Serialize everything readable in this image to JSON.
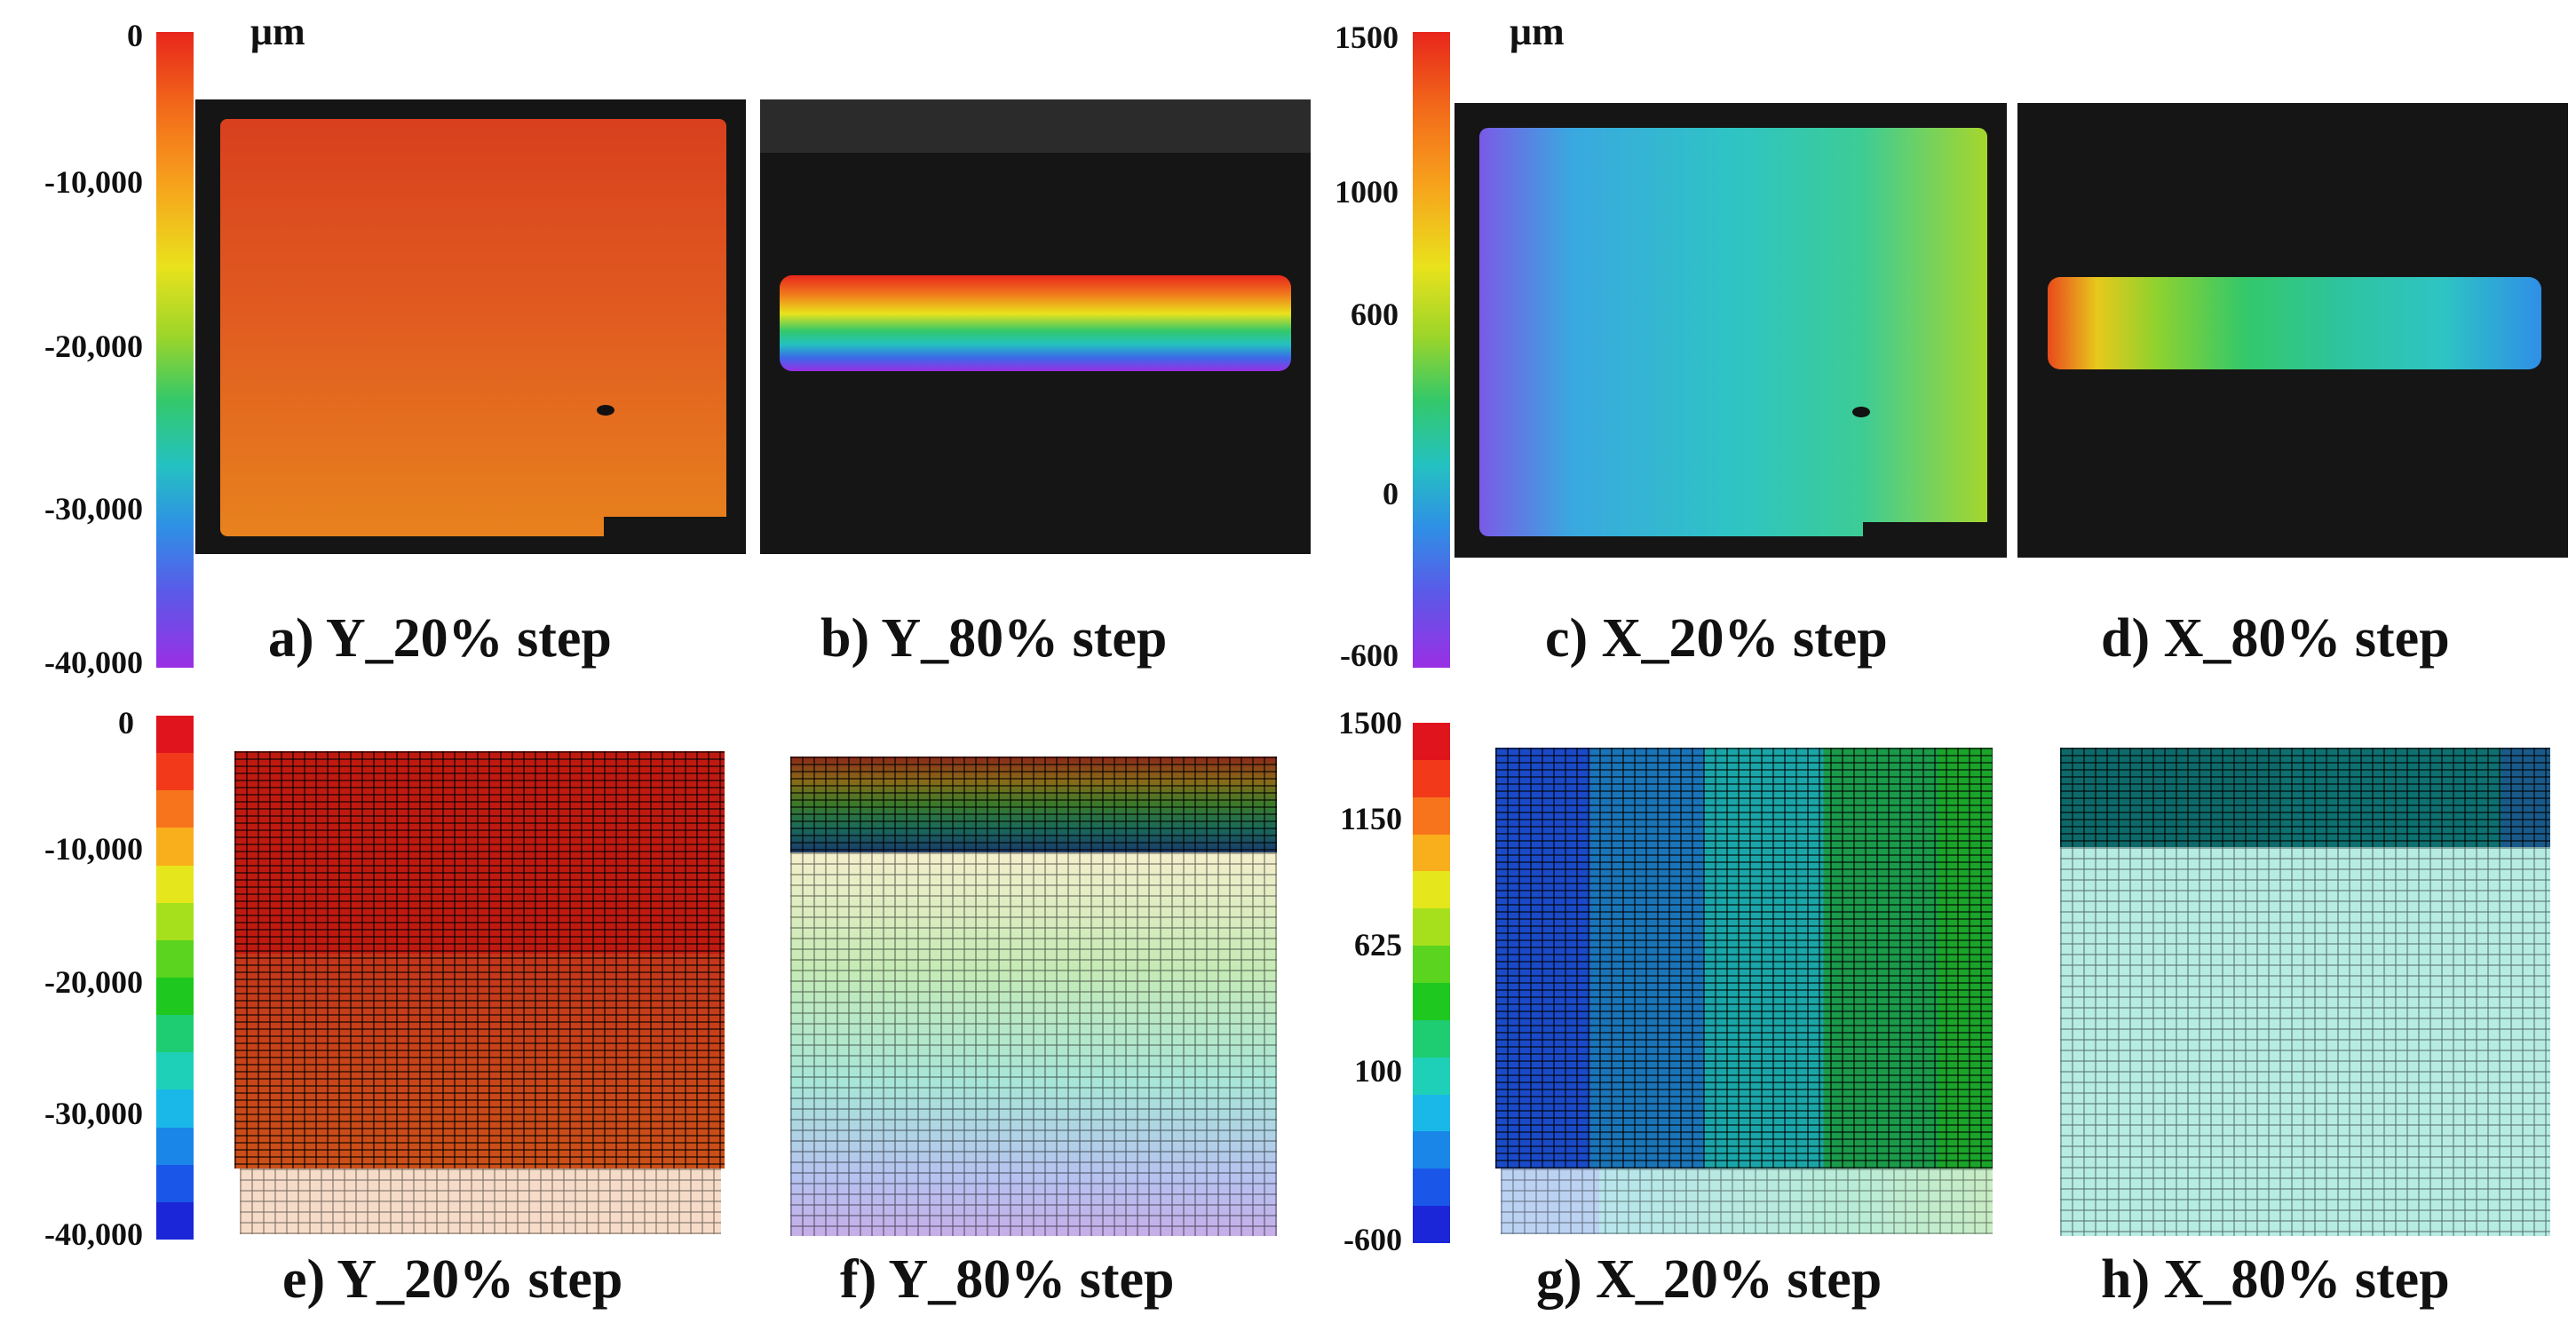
{
  "units": {
    "left": "μm",
    "right": "μm"
  },
  "scale_y": {
    "ticks": [
      "0",
      "-10,000",
      "-20,000",
      "-30,000",
      "-40,000"
    ]
  },
  "scale_x_top": {
    "ticks": [
      "1500",
      "1000",
      "600",
      "0",
      "-600"
    ]
  },
  "scale_x_bottom": {
    "ticks": [
      "1500",
      "1150",
      "625",
      "100",
      "-600"
    ]
  },
  "captions": {
    "a": "a) Y_20% step",
    "b": "b) Y_80% step",
    "c": "c) X_20% step",
    "d": "d) X_80% step",
    "e": "e) Y_20% step",
    "f": "f) Y_80% step",
    "g": "g) X_20% step",
    "h": "h) X_80% step"
  },
  "colors": {
    "step_legend": [
      "#e0141c",
      "#f23a1a",
      "#f7741c",
      "#f9ae1c",
      "#e6e61c",
      "#a6e01c",
      "#5ad41e",
      "#1ec81e",
      "#1ecc72",
      "#1ed0b8",
      "#1ab8e8",
      "#1a86e8",
      "#1a56e8",
      "#1a26d8"
    ]
  }
}
